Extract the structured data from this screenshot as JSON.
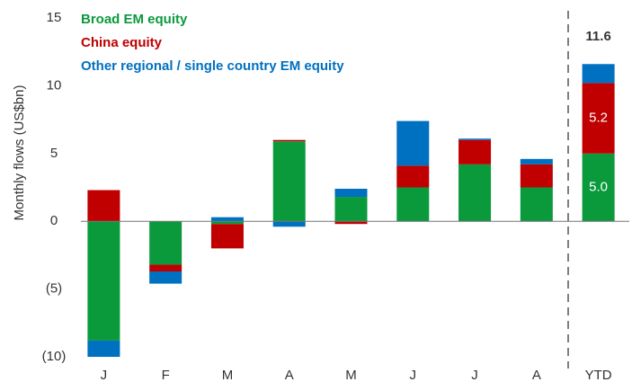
{
  "chart_data": {
    "type": "stacked_bar",
    "y_label": "Monthly flows (US$bn)",
    "categories": [
      "J",
      "F",
      "M",
      "A",
      "M",
      "J",
      "J",
      "A",
      "YTD"
    ],
    "series": [
      {
        "name": "Broad EM equity",
        "color": "#0a9a3c",
        "values": [
          -8.8,
          -3.2,
          -0.2,
          5.9,
          1.8,
          2.5,
          4.2,
          2.5,
          5.0
        ],
        "value_labels": [
          null,
          null,
          null,
          null,
          null,
          null,
          null,
          null,
          "5.0"
        ]
      },
      {
        "name": "China equity",
        "color": "#c00000",
        "values": [
          2.3,
          -0.5,
          -1.8,
          0.1,
          -0.2,
          1.6,
          1.8,
          1.7,
          5.2
        ],
        "value_labels": [
          null,
          null,
          null,
          null,
          null,
          null,
          null,
          null,
          "5.2"
        ]
      },
      {
        "name": "Other regional / single country EM equity",
        "color": "#0070c0",
        "values": [
          -1.2,
          -0.9,
          0.3,
          -0.4,
          0.6,
          3.3,
          0.1,
          0.4,
          1.4
        ]
      }
    ],
    "ytd_total": 11.6,
    "ylim": [
      -10,
      15
    ],
    "yticks": [
      {
        "value": -10,
        "label": "(10)"
      },
      {
        "value": -5,
        "label": "(5)"
      },
      0,
      5,
      10,
      15
    ],
    "grid": false
  }
}
